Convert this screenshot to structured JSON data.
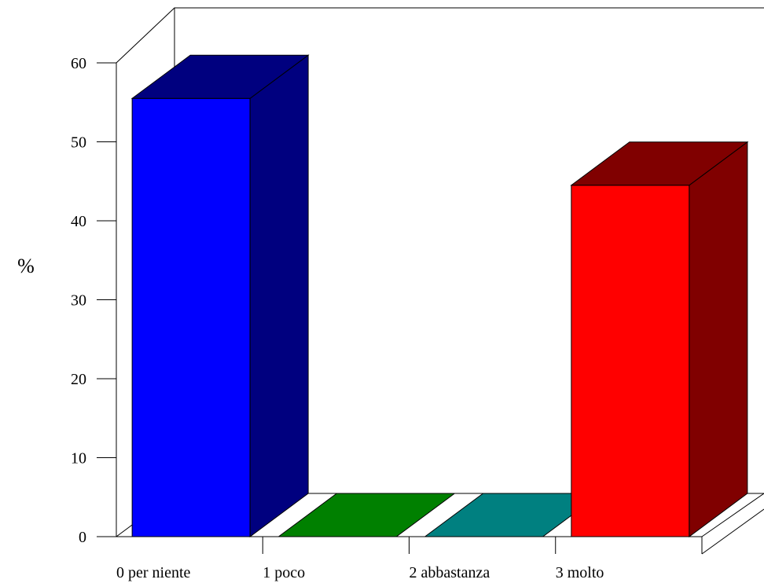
{
  "chart_data": {
    "type": "bar",
    "style": "3d",
    "categories": [
      "0 per niente",
      "1 poco",
      "2 abbastanza",
      "3 molto"
    ],
    "values": [
      55.5,
      0,
      0,
      44.5
    ],
    "colors": [
      {
        "front": "#0000ff",
        "dark": "#00007f"
      },
      {
        "front": "#008000",
        "dark": "#008000"
      },
      {
        "front": "#008080",
        "dark": "#008080"
      },
      {
        "front": "#ff0000",
        "dark": "#800000"
      }
    ],
    "ylabel": "%",
    "ylim": [
      0,
      60
    ],
    "yticks": [
      "0",
      "10",
      "20",
      "30",
      "40",
      "50",
      "60"
    ],
    "grid": false,
    "legend": "none"
  }
}
